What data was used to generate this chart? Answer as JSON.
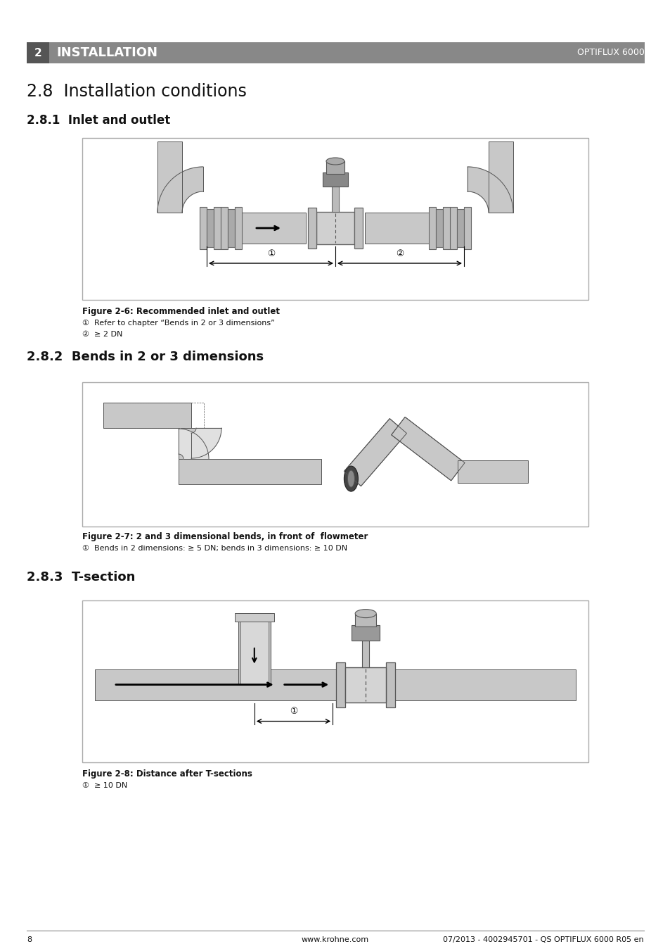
{
  "page_bg": "#ffffff",
  "header_bar_color": "#888888",
  "header_num_bg": "#555555",
  "header_num": "2",
  "header_title": "INSTALLATION",
  "header_right": "OPTIFLUX 6000",
  "section_title": "2.8  Installation conditions",
  "sub1_title": "2.8.1  Inlet and outlet",
  "sub2_title": "2.8.2  Bends in 2 or 3 dimensions",
  "sub3_title": "2.8.3  T-section",
  "fig1_caption": "Figure 2-6: Recommended inlet and outlet",
  "fig1_note1": "①  Refer to chapter “Bends in 2 or 3 dimensions”",
  "fig1_note2": "②  ≥ 2 DN",
  "fig2_caption": "Figure 2-7: 2 and 3 dimensional bends, in front of  flowmeter",
  "fig2_note1": "①  Bends in 2 dimensions: ≥ 5 DN; bends in 3 dimensions: ≥ 10 DN",
  "fig3_caption": "Figure 2-8: Distance after T-sections",
  "fig3_note1": "①  ≥ 10 DN",
  "footer_page": "8",
  "footer_url": "www.krohne.com",
  "footer_right": "07/2013 - 4002945701 - QS OPTIFLUX 6000 R05 en",
  "diagram_box_color": "#ffffff",
  "diagram_border_color": "#aaaaaa",
  "pipe_fill": "#c8c8c8",
  "pipe_edge": "#555555",
  "pipe_light": "#e0e0e0",
  "pipe_dark2": "#999999",
  "text_color": "#111111"
}
